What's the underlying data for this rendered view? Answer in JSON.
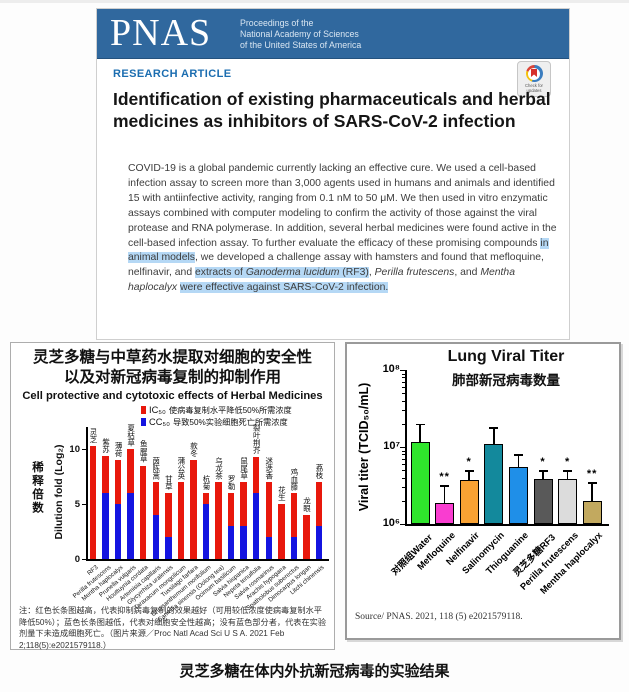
{
  "page": {
    "caption": "灵芝多糖在体内外抗新冠病毒的实验结果"
  },
  "article": {
    "logo": "PNAS",
    "logo_lines": [
      "Proceedings of the",
      "National Academy of Sciences",
      "of the United States of America"
    ],
    "kicker": "RESEARCH ARTICLE",
    "update_badge": "Check for updates",
    "title": "Identification of existing pharmaceuticals and herbal medicines as inhibitors of SARS-CoV-2 infection",
    "abstract_segments": [
      {
        "text": "COVID-19 is a global pandemic currently lacking an effective cure. We used a cell-based infection assay to screen more than 3,000 agents used in humans and animals and identified 15 with antiinfective activity, ranging from 0.1 nM to 50 μM. We then used in vitro enzymatic assays combined with computer modeling to confirm the activity of those against the viral protease and RNA polymerase. In addition, several herbal medicines were found active in the cell-based infection assay. To further evaluate the efficacy of these promising compounds "
      },
      {
        "text": "in animal models",
        "highlight": true
      },
      {
        "text": ", we developed a challenge assay with hamsters and found that mefloquine, nelfinavir, and "
      },
      {
        "text": "extracts of ",
        "highlight": true
      },
      {
        "text": "Ganoderma lucidum",
        "highlight": true,
        "italic": true
      },
      {
        "text": " (RF3)",
        "highlight": true
      },
      {
        "text": ", "
      },
      {
        "text": "Perilla frutescens",
        "italic": true
      },
      {
        "text": ", and "
      },
      {
        "text": "Mentha haplocalyx",
        "italic": true
      },
      {
        "text": " "
      },
      {
        "text": "were effective against SARS-CoV-2 infection.",
        "highlight": true
      }
    ]
  },
  "chart_data": [
    {
      "type": "bar",
      "title_zh": [
        "灵芝多糖与中草药水提取对细胞的安全性",
        "以及对新冠病毒复制的抑制作用"
      ],
      "subtitle": "Cell protective and cytotoxic effects of Herbal Medicines",
      "ylabel_zh": "稀释倍数",
      "ylabel": "Dilution fold (Log₂)",
      "ylim": [
        0,
        12
      ],
      "yticks": [
        0,
        5,
        10
      ],
      "grid": false,
      "legend_position": "top-right",
      "legend": [
        {
          "label": "IC₅₀",
          "desc": "使病毒复制水平降低50%所需浓度",
          "color": "#e8180c"
        },
        {
          "label": "CC₅₀",
          "desc": "导致50%实验细胞死亡所需浓度",
          "color": "#1414e0"
        }
      ],
      "categories": [
        "RF3",
        "Perilla frutescens",
        "Mentha haplocalyx",
        "Prunella vulgaris",
        "Houttuynia cordata",
        "Artemisia capillaris",
        "Glycyrrhiza uralensis",
        "Taraxacum mongolicum",
        "Tussilago farfara",
        "Chrysanthemum morifolium",
        "Camellia sinensis (Oolong tea)",
        "Ocimum basilicum",
        "Salvia hispanica",
        "Nepeta tenuifolia",
        "Salvia rosmarinus",
        "Arachis hypogaea",
        "Spatholobus suberectus",
        "Dimocarpus longan",
        "Litchi chinensis"
      ],
      "categories_zh": [
        "灵芝",
        "紫苏",
        "薄荷",
        "夏枯草",
        "鱼腥草",
        "茵陈蒿",
        "甘草",
        "蒲公英",
        "款冬",
        "杭菊",
        "乌龙茶",
        "罗勒",
        "鼠尾草",
        "裂叶荆芥",
        "迷迭香",
        "花生",
        "鸡血藤",
        "龙眼",
        "荔枝"
      ],
      "series": [
        {
          "name": "IC₅₀",
          "color": "#e8180c",
          "values": [
            10.3,
            9.4,
            9,
            10,
            8.5,
            7,
            6,
            7,
            9,
            6,
            7,
            6,
            7,
            9.3,
            7,
            5,
            6,
            4,
            7
          ]
        },
        {
          "name": "CC₅₀",
          "color": "#1414e0",
          "values": [
            0,
            6,
            5,
            6,
            0,
            4,
            2,
            0,
            0,
            5,
            0,
            3,
            3,
            6,
            2,
            0,
            2,
            0,
            3
          ]
        }
      ],
      "note": "注：红色长条图越高，代表抑制病毒复制的效果越好（可用较低浓度使病毒复制水平降低50%）；蓝色长条图越低，代表对细胞安全性越高；没有蓝色部分者，代表在实验剂量下未造成细胞死亡。（图片来源／Proc Natl Acad Sci U S A. 2021 Feb 2;118(5):e2021579118.）"
    },
    {
      "type": "bar",
      "title": "Lung Viral Titer",
      "subtitle_zh": "肺部新冠病毒数量",
      "ylabel": "Viral titer (TCID₅₀/mL)",
      "yscale": "log",
      "ylim": [
        1000000,
        100000000
      ],
      "ytick_labels": [
        "10⁶",
        "10⁷",
        "10⁸"
      ],
      "grid": false,
      "categories": [
        "对照组Water",
        "Mefloquine",
        "Nelfinavir",
        "Salinomycin",
        "Thioguanine",
        "灵芝多糖RF3",
        "Perilla frutescens",
        "Mentha haplocalyx"
      ],
      "values": [
        11500000,
        1900000,
        3700000,
        11000000,
        5500000,
        3800000,
        3800000,
        2000000
      ],
      "error_top": [
        20000000,
        3200000,
        5000000,
        18000000,
        8000000,
        5000000,
        5000000,
        3500000
      ],
      "significance": [
        "",
        "**",
        "*",
        "",
        "",
        "*",
        "*",
        "**"
      ],
      "colors": [
        "#2fe52c",
        "#f93dd0",
        "#f9a233",
        "#13899c",
        "#1f8fe8",
        "#595959",
        "#dcdcdc",
        "#c2a95f"
      ],
      "source": "Source/ PNAS. 2021, 118 (5) e2021579118."
    }
  ]
}
